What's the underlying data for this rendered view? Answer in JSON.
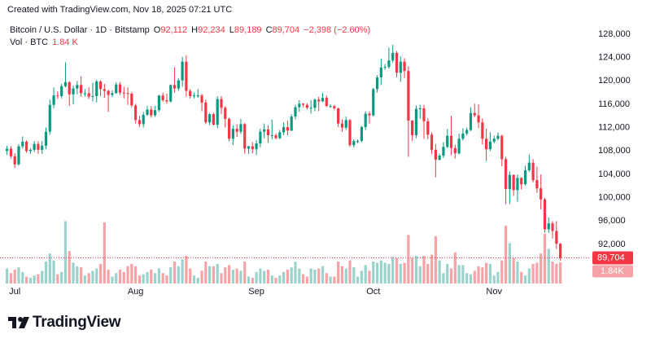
{
  "header": {
    "created": "Created with TradingView.com, Nov 18, 2025 07:21 UTC"
  },
  "chart_data": {
    "type": "candlestick",
    "title": "Bitcoin / U.S. Dollar · 1D · Bitstamp",
    "ohlc_legend": [
      {
        "key": "O",
        "value": "92,112"
      },
      {
        "key": "H",
        "value": "92,234"
      },
      {
        "key": "L",
        "value": "89,189"
      },
      {
        "key": "C",
        "value": "89,704"
      }
    ],
    "change": "−2,398 (−2.60%)",
    "volume_legend": {
      "name": "Vol · BTC",
      "value": "1.84 K"
    },
    "up_color": "#089981",
    "down_color": "#f23645",
    "up_volume_color": "#9ad3cb",
    "down_volume_color": "#f5a3a6",
    "xlim": [
      -1.8,
      149.6
    ],
    "xticks": [
      {
        "value": 2,
        "label": "Jul"
      },
      {
        "value": 33,
        "label": "Aug"
      },
      {
        "value": 64,
        "label": "Sep"
      },
      {
        "value": 94,
        "label": "Oct"
      },
      {
        "value": 125,
        "label": "Nov"
      }
    ],
    "ylim": [
      85300,
      130790
    ],
    "yticks": [
      {
        "value": 92000,
        "label": "92,000"
      },
      {
        "value": 96000,
        "label": "96,000"
      },
      {
        "value": 100000,
        "label": "100,000"
      },
      {
        "value": 104000,
        "label": "104,000"
      },
      {
        "value": 108000,
        "label": "108,000"
      },
      {
        "value": 112000,
        "label": "112,000"
      },
      {
        "value": 116000,
        "label": "116,000"
      },
      {
        "value": 120000,
        "label": "120,000"
      },
      {
        "value": 124000,
        "label": "124,000"
      },
      {
        "value": 128000,
        "label": "128,000"
      }
    ],
    "vlim": [
      0,
      23000
    ],
    "last_price": {
      "value": 89704,
      "label": "89,704"
    },
    "last_volume": {
      "value": 1840,
      "label": "1.84K"
    },
    "open": [
      108000,
      108400,
      107100,
      105700,
      108800,
      109600,
      108000,
      108200,
      109200,
      108200,
      108900,
      111300,
      115900,
      117500,
      117400,
      119100,
      119800,
      117700,
      118700,
      119300,
      117900,
      117900,
      117300,
      117400,
      119900,
      118600,
      118300,
      117600,
      117900,
      119400,
      118000,
      117900,
      117800,
      115800,
      113300,
      112600,
      114200,
      115100,
      114100,
      115000,
      117500,
      116700,
      116500,
      119300,
      118700,
      120100,
      123300,
      118300,
      117400,
      117500,
      117500,
      116300,
      112900,
      114300,
      112500,
      116900,
      115400,
      113500,
      110100,
      111800,
      111300,
      112600,
      108400,
      108800,
      108300,
      109300,
      111300,
      111700,
      110700,
      110700,
      110200,
      111200,
      112100,
      111500,
      113900,
      115500,
      116100,
      115900,
      115400,
      115400,
      116800,
      116500,
      117100,
      115700,
      115700,
      115300,
      112700,
      112000,
      113300,
      109000,
      109700,
      109700,
      112100,
      114400,
      114100,
      118600,
      120600,
      122300,
      122400,
      123500,
      124800,
      121400,
      123300,
      121700,
      113200,
      110700,
      115200,
      115300,
      113100,
      110800,
      108200,
      106500,
      107200,
      108700,
      110600,
      108500,
      107600,
      110100,
      111000,
      111600,
      114500,
      114100,
      112900,
      110100,
      108300,
      109600,
      110100,
      110600,
      106600,
      101500,
      103900,
      101300,
      103400,
      102300,
      104700,
      106000,
      103000,
      101600,
      99700,
      94600,
      95600,
      94300,
      92112
    ],
    "high": [
      108900,
      108800,
      107600,
      109200,
      110500,
      109800,
      108500,
      109700,
      109700,
      109700,
      112000,
      116800,
      118900,
      118200,
      119500,
      123200,
      119900,
      119200,
      120000,
      120800,
      118600,
      118900,
      119700,
      120200,
      120100,
      119500,
      118500,
      118400,
      119800,
      119800,
      119000,
      118900,
      118100,
      116100,
      114000,
      114700,
      115700,
      115700,
      115700,
      117600,
      118000,
      117800,
      119400,
      122300,
      120500,
      124100,
      124400,
      118600,
      118000,
      118600,
      117800,
      116800,
      114500,
      114600,
      117400,
      117400,
      115700,
      113700,
      112400,
      112600,
      113500,
      112800,
      108900,
      109500,
      109900,
      111800,
      112700,
      112400,
      113400,
      111000,
      111600,
      112900,
      113200,
      114300,
      115900,
      116700,
      116200,
      116200,
      116700,
      117000,
      117300,
      117900,
      117500,
      116000,
      115900,
      115400,
      113400,
      113900,
      113500,
      110000,
      110000,
      112300,
      114800,
      114800,
      118800,
      121000,
      123800,
      122900,
      125700,
      126200,
      125100,
      124200,
      123900,
      122500,
      113300,
      115800,
      115900,
      115900,
      113600,
      111200,
      109200,
      107500,
      109500,
      111800,
      114000,
      109100,
      111000,
      111900,
      112000,
      115500,
      116100,
      116000,
      113600,
      111800,
      111200,
      110600,
      111200,
      110800,
      107000,
      104500,
      104000,
      104000,
      103500,
      105500,
      107400,
      106600,
      105300,
      104000,
      100000,
      96600,
      96000,
      96000,
      92234
    ],
    "low": [
      107300,
      106700,
      105100,
      105500,
      108400,
      107700,
      107500,
      107800,
      107500,
      107500,
      108300,
      110800,
      115300,
      116900,
      117000,
      118900,
      115700,
      116000,
      117700,
      117300,
      117300,
      116900,
      116500,
      116300,
      117400,
      117100,
      114700,
      117200,
      117800,
      117600,
      117000,
      115900,
      115500,
      112700,
      112100,
      112000,
      114000,
      113700,
      113900,
      114700,
      116400,
      116100,
      116300,
      118000,
      118300,
      119000,
      117300,
      117000,
      117000,
      117100,
      114800,
      112600,
      112400,
      112400,
      111900,
      114300,
      112000,
      109700,
      109000,
      110400,
      110900,
      107500,
      107500,
      107600,
      107300,
      108600,
      110200,
      109400,
      110000,
      110000,
      110000,
      110700,
      110700,
      111400,
      113400,
      114700,
      115500,
      115100,
      114400,
      114800,
      114800,
      116400,
      115500,
      115400,
      115000,
      112100,
      111300,
      111600,
      108700,
      108600,
      109300,
      109500,
      111600,
      112700,
      113900,
      118000,
      119300,
      121900,
      122100,
      123100,
      120600,
      119800,
      120500,
      107000,
      109700,
      110200,
      113500,
      110100,
      110000,
      107500,
      103500,
      106400,
      106800,
      108500,
      107300,
      106700,
      107400,
      109800,
      110700,
      111400,
      113800,
      111900,
      109100,
      106300,
      108000,
      109300,
      109800,
      105400,
      98900,
      98900,
      100300,
      99300,
      101400,
      102100,
      104400,
      102600,
      100800,
      98000,
      94000,
      94000,
      93000,
      91200,
      89189
    ],
    "close": [
      108400,
      107100,
      105700,
      108800,
      109600,
      108000,
      108200,
      109200,
      108200,
      108900,
      111300,
      115900,
      117500,
      117400,
      119100,
      119800,
      117700,
      118700,
      119300,
      117900,
      117900,
      117300,
      117400,
      119900,
      118600,
      118300,
      117600,
      117900,
      119400,
      118000,
      117900,
      117800,
      115800,
      113300,
      112600,
      114200,
      115100,
      114100,
      115000,
      117500,
      116700,
      116500,
      119300,
      118700,
      120100,
      123300,
      118300,
      117400,
      117500,
      117500,
      116300,
      112900,
      114300,
      112500,
      116900,
      115400,
      113500,
      110100,
      111800,
      111300,
      112600,
      108400,
      108800,
      108300,
      109300,
      111300,
      111700,
      110700,
      110700,
      110200,
      111200,
      112100,
      111500,
      113900,
      115500,
      116100,
      115900,
      115400,
      115400,
      116800,
      116500,
      117100,
      115700,
      115700,
      115300,
      112700,
      112000,
      113300,
      109000,
      109700,
      109700,
      112100,
      114400,
      114100,
      118600,
      120600,
      122300,
      122400,
      123500,
      124800,
      121400,
      123300,
      121700,
      113200,
      110700,
      115200,
      115300,
      113100,
      110800,
      108200,
      106500,
      107200,
      108700,
      110600,
      108500,
      107600,
      110100,
      111000,
      111600,
      114500,
      114100,
      112900,
      110100,
      108300,
      109600,
      110100,
      110600,
      106600,
      101500,
      103900,
      101300,
      103400,
      102300,
      104700,
      106000,
      103000,
      101600,
      99700,
      94600,
      95600,
      94300,
      92112,
      89704
    ],
    "volume": [
      1300,
      900,
      1200,
      1400,
      1000,
      600,
      500,
      700,
      800,
      1100,
      1900,
      2600,
      2000,
      800,
      1000,
      5400,
      2800,
      1800,
      1500,
      1400,
      700,
      900,
      1100,
      1300,
      1700,
      5300,
      1200,
      600,
      900,
      1200,
      1000,
      1500,
      1700,
      1500,
      700,
      800,
      1000,
      1200,
      900,
      1300,
      900,
      700,
      1400,
      1900,
      1500,
      2100,
      2400,
      1300,
      700,
      500,
      1100,
      1900,
      1500,
      1500,
      1700,
      900,
      1400,
      1600,
      1200,
      1300,
      1100,
      1900,
      600,
      500,
      1000,
      1300,
      1100,
      1200,
      700,
      500,
      700,
      1000,
      1200,
      1400,
      1900,
      1300,
      800,
      600,
      1300,
      1200,
      1300,
      1500,
      900,
      600,
      600,
      1900,
      1500,
      1300,
      2000,
      1400,
      600,
      1100,
      1600,
      1100,
      1900,
      1800,
      2000,
      1800,
      1700,
      2300,
      2200,
      1700,
      1800,
      4200,
      2200,
      2400,
      1500,
      2400,
      1700,
      2500,
      4100,
      2000,
      900,
      1700,
      1300,
      2700,
      1600,
      1600,
      900,
      800,
      1100,
      1500,
      1400,
      1800,
      1700,
      700,
      1000,
      2000,
      5000,
      3500,
      2200,
      1900,
      1000,
      700,
      1300,
      1700,
      1800,
      2600,
      4300,
      3000,
      1900,
      1700,
      1840
    ]
  },
  "footer": {
    "brand": "TradingView"
  }
}
